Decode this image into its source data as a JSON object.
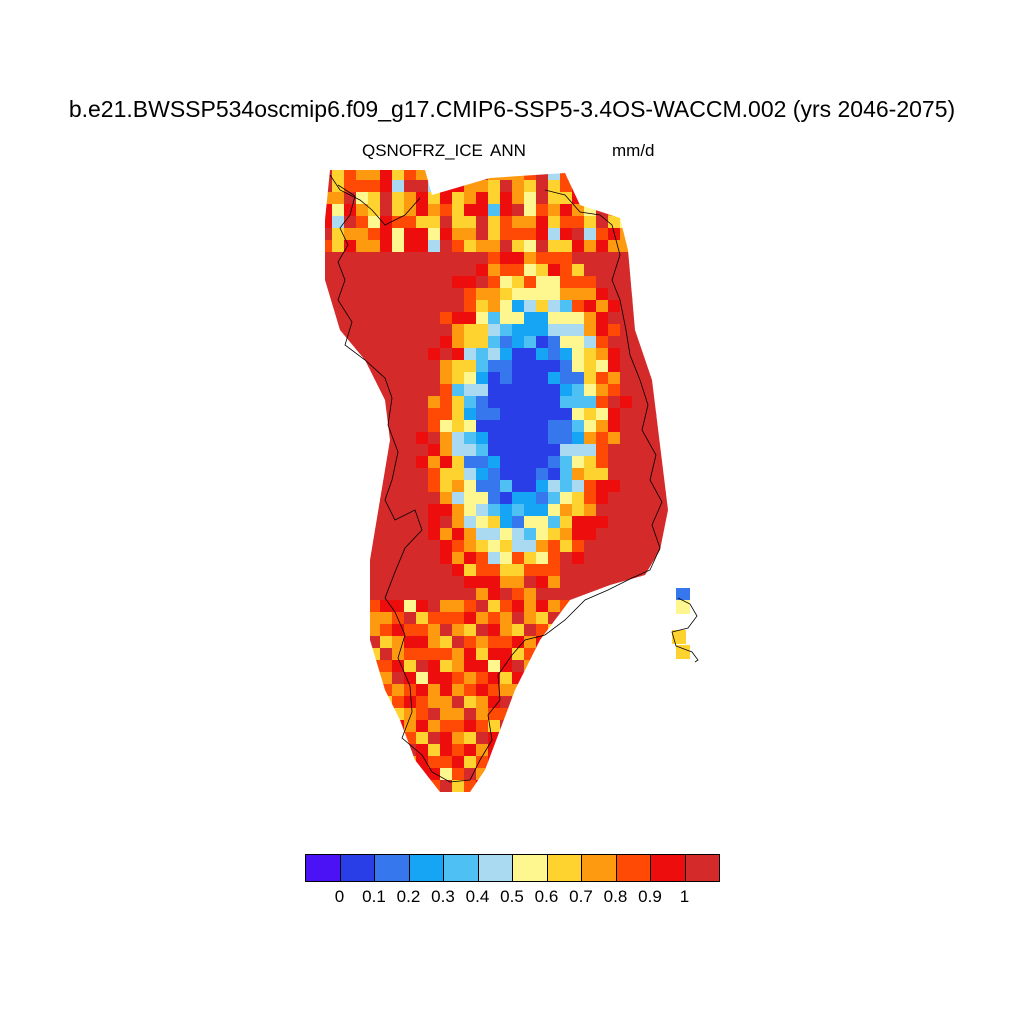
{
  "title": "b.e21.BWSSP534oscmip6.f09_g17.CMIP6-SSP5-3.4OS-WACCM.002 (yrs 2046-2075)",
  "subtitle_left": "QSNOFRZ_ICE",
  "subtitle_center": "ANN",
  "subtitle_right": "mm/d",
  "colorbar": {
    "colors": [
      "#4a12f5",
      "#2a3ee8",
      "#3777ee",
      "#16a4f4",
      "#4fc0f4",
      "#a9daf2",
      "#fef68f",
      "#fed330",
      "#fe9a10",
      "#fe4a05",
      "#ed0d0d",
      "#d42a2a"
    ],
    "labels": [
      "0",
      "0.1",
      "0.2",
      "0.3",
      "0.4",
      "0.5",
      "0.6",
      "0.7",
      "0.8",
      "0.9",
      "1"
    ]
  },
  "map_data": {
    "field": "QSNOFRZ_ICE",
    "units": "mm/d",
    "period": "ANN",
    "region": "Greenland",
    "range": [
      0,
      1
    ]
  }
}
